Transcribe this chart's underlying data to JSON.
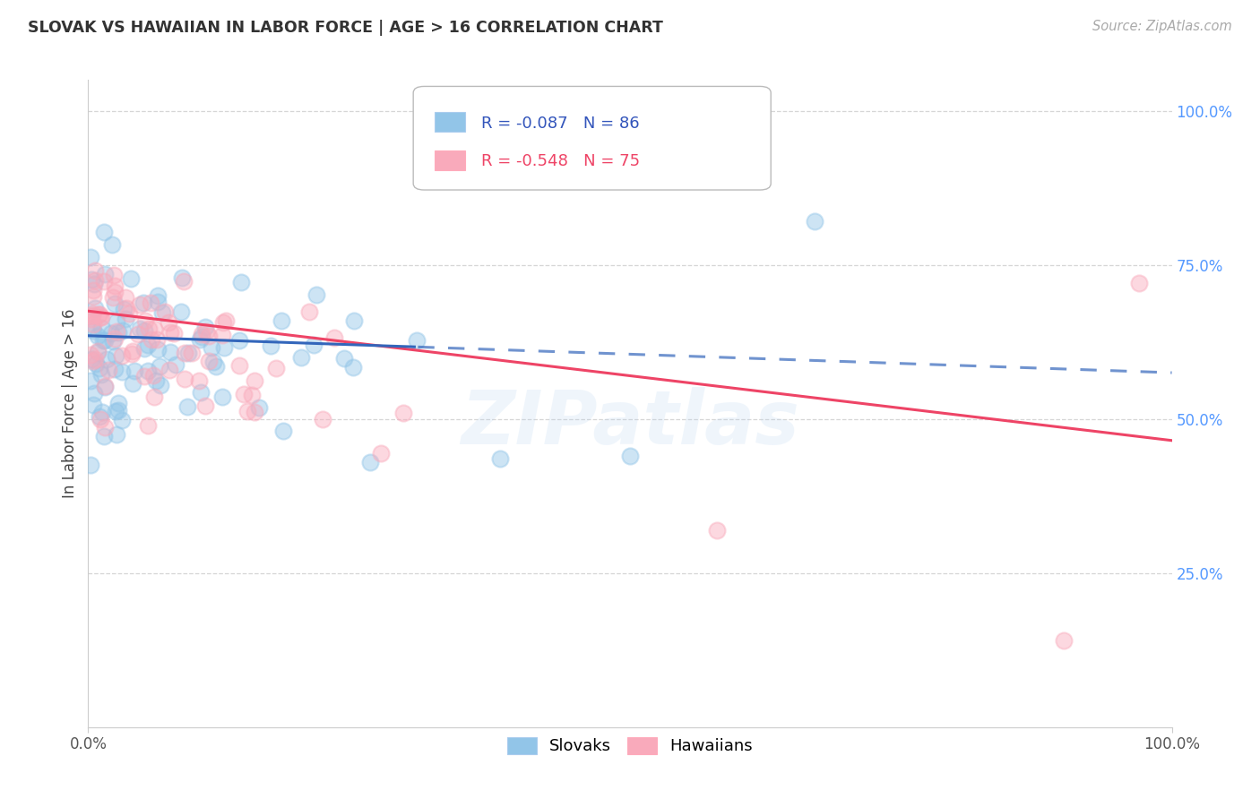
{
  "title": "SLOVAK VS HAWAIIAN IN LABOR FORCE | AGE > 16 CORRELATION CHART",
  "source": "Source: ZipAtlas.com",
  "ylabel": "In Labor Force | Age > 16",
  "xlim": [
    0.0,
    1.0
  ],
  "ylim": [
    0.0,
    1.05
  ],
  "y_tick_labels_right": [
    "100.0%",
    "75.0%",
    "50.0%",
    "25.0%"
  ],
  "y_tick_positions_right": [
    1.0,
    0.75,
    0.5,
    0.25
  ],
  "slovak_R": -0.087,
  "slovak_N": 86,
  "hawaiian_R": -0.548,
  "hawaiian_N": 75,
  "slovak_color": "#92C5E8",
  "hawaiian_color": "#F9AABB",
  "slovak_line_color": "#3366BB",
  "hawaiian_line_color": "#EE4466",
  "background_color": "#FFFFFF",
  "watermark": "ZIPatlas",
  "grid_color": "#CCCCCC",
  "legend_box_color": "#DDDDDD",
  "title_color": "#333333",
  "source_color": "#AAAAAA",
  "axis_tick_color": "#555555",
  "right_tick_color": "#5599FF",
  "slovak_line_start_y": 0.635,
  "slovak_line_end_y": 0.575,
  "hawaiian_line_start_y": 0.675,
  "hawaiian_line_end_y": 0.465
}
